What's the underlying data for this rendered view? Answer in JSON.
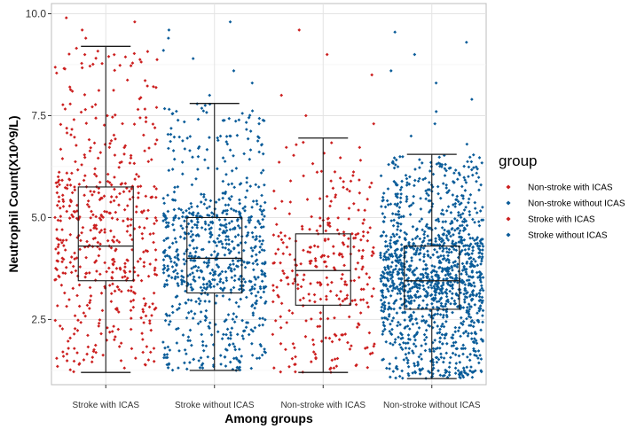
{
  "chart_data": {
    "type": "box",
    "title": "",
    "xlabel": "Among groups",
    "ylabel": "Neutrophil Count(X10^9/L)",
    "ylim": [
      0.9,
      10.25
    ],
    "yticks": [
      2.5,
      5.0,
      7.5,
      10.0
    ],
    "ytick_labels": [
      "2.5",
      "5.0",
      "7.5",
      "10.0"
    ],
    "grid": true,
    "categories": [
      "Stroke with ICAS",
      "Stroke without ICAS",
      "Non-stroke with ICAS",
      "Non-stroke without ICAS"
    ],
    "series": [
      {
        "name": "Stroke with ICAS",
        "color": "#CC1F1F",
        "min": 1.2,
        "q1": 3.45,
        "median": 4.3,
        "q3": 5.75,
        "max": 9.2,
        "n_points": 520,
        "outliers": [
          9.4,
          9.6,
          9.8,
          9.9
        ]
      },
      {
        "name": "Stroke without ICAS",
        "color": "#0A5C99",
        "min": 1.25,
        "q1": 3.15,
        "median": 4.0,
        "q3": 5.0,
        "max": 7.8,
        "n_points": 780,
        "outliers": [
          8.0,
          8.3,
          8.6,
          8.9,
          9.1,
          9.4,
          9.6,
          9.8
        ]
      },
      {
        "name": "Non-stroke with ICAS",
        "color": "#CC1F1F",
        "min": 1.2,
        "q1": 2.85,
        "median": 3.7,
        "q3": 4.6,
        "max": 6.95,
        "n_points": 300,
        "outliers": [
          7.3,
          7.5,
          8.0,
          8.5,
          9.0,
          9.6
        ]
      },
      {
        "name": "Non-stroke without ICAS",
        "color": "#0A5C99",
        "min": 1.05,
        "q1": 2.75,
        "median": 3.45,
        "q3": 4.3,
        "max": 6.55,
        "n_points": 1300,
        "outliers": [
          6.8,
          7.0,
          7.3,
          7.6,
          7.9,
          8.3,
          8.6,
          9.0,
          9.3,
          9.55
        ]
      }
    ],
    "legend": {
      "title": "group",
      "position": "right",
      "entries": [
        {
          "label": "Non-stroke with ICAS",
          "color": "#CC1F1F"
        },
        {
          "label": "Non-stroke without ICAS",
          "color": "#0A5C99"
        },
        {
          "label": "Stroke with ICAS",
          "color": "#CC1F1F"
        },
        {
          "label": "Stroke without ICAS",
          "color": "#0A5C99"
        }
      ]
    }
  }
}
